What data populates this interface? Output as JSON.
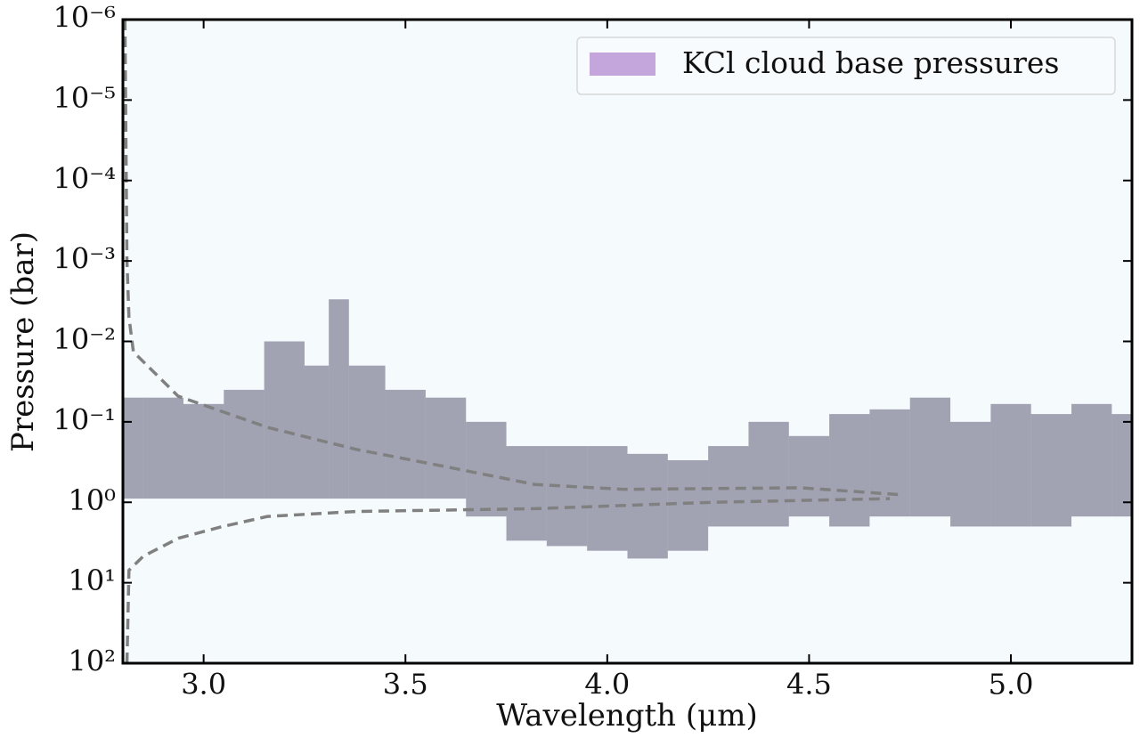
{
  "chart_data": {
    "type": "line",
    "xlabel": "Wavelength (μm)",
    "ylabel": "Pressure (bar)",
    "xlim": [
      2.8,
      5.3
    ],
    "ylim": [
      100,
      1e-06
    ],
    "yscale": "log",
    "xticks": [
      {
        "value": 3,
        "label": "3.0"
      },
      3.5,
      {
        "value": 4,
        "label": "4.0"
      },
      4.5,
      {
        "value": 5,
        "label": "5.0"
      }
    ],
    "yticks": [
      {
        "value": 1e-06,
        "label": "10⁻⁶"
      },
      {
        "value": 1e-05,
        "label": "10⁻⁵"
      },
      {
        "value": 0.0001,
        "label": "10⁻⁴"
      },
      {
        "value": 0.001,
        "label": "10⁻³"
      },
      {
        "value": 0.01,
        "label": "10⁻²"
      },
      {
        "value": 0.1,
        "label": "10⁻¹"
      },
      {
        "value": 1,
        "label": "10⁰"
      },
      {
        "value": 10,
        "label": "10¹"
      },
      {
        "value": 100,
        "label": "10²"
      }
    ],
    "legend": "upper right",
    "contribution": {
      "color": "#3b3a5c",
      "x": [
        2.8,
        2.9,
        3.0,
        3.1,
        3.2,
        3.3,
        3.32,
        3.4,
        3.5,
        3.6,
        3.7,
        3.8,
        3.9,
        4.0,
        4.1,
        4.2,
        4.3,
        4.4,
        4.5,
        4.6,
        4.7,
        4.8,
        4.9,
        5.0,
        5.1,
        5.2,
        5.3
      ],
      "top": [
        0.05,
        0.05,
        0.06,
        0.04,
        0.01,
        0.02,
        0.003,
        0.02,
        0.04,
        0.05,
        0.1,
        0.2,
        0.2,
        0.2,
        0.25,
        0.3,
        0.2,
        0.1,
        0.15,
        0.08,
        0.07,
        0.05,
        0.1,
        0.06,
        0.08,
        0.06,
        0.08
      ],
      "bottom": [
        0.9,
        0.9,
        0.9,
        0.9,
        0.9,
        0.9,
        0.9,
        0.9,
        0.9,
        0.9,
        1.5,
        3,
        3.5,
        4,
        5,
        4,
        2,
        2,
        1.5,
        2,
        1.5,
        1.5,
        2,
        2,
        2,
        1.5,
        1.5
      ]
    },
    "band": {
      "name": "KCl cloud base pressures",
      "color": "#c5a6dc",
      "range": [
        1.05,
        1.22
      ]
    },
    "series": [
      {
        "color": "#808080",
        "dash": true,
        "x": [
          2.805,
          2.81,
          2.815,
          2.826,
          2.937,
          3.158,
          3.378,
          3.599,
          3.82,
          4.04,
          4.48,
          4.72
        ],
        "values": [
          1e-06,
          0.001,
          0.005,
          0.0135,
          0.048,
          0.117,
          0.22,
          0.36,
          0.6,
          0.69,
          0.66,
          0.8
        ]
      },
      {
        "color": "#808080",
        "dash": true,
        "x": [
          2.81,
          2.815,
          2.85,
          2.937,
          3.047,
          3.158,
          3.378,
          3.82,
          4.26,
          4.7
        ],
        "values": [
          100,
          7,
          4.7,
          2.8,
          2,
          1.5,
          1.3,
          1.2,
          1,
          0.9
        ]
      }
    ]
  }
}
